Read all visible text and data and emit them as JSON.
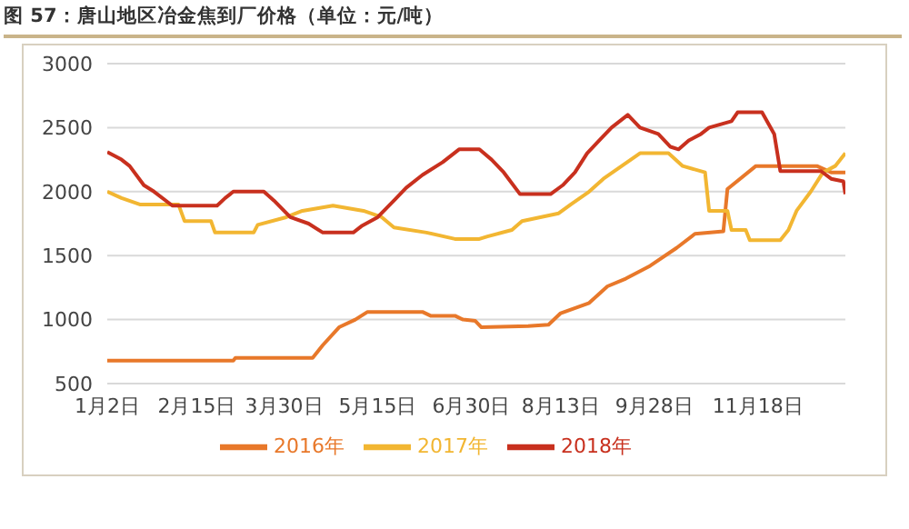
{
  "chart_data": {
    "type": "line",
    "title": "图 57：唐山地区冶金焦到厂价格（单位：元/吨）",
    "xlim": [
      "--01-02",
      "--12-31"
    ],
    "xticks": [
      {
        "value": "--01-02",
        "label": "1月2日"
      },
      {
        "value": "--02-15",
        "label": "2月15日"
      },
      {
        "value": "--03-30",
        "label": "3月30日"
      },
      {
        "value": "--05-15",
        "label": "5月15日"
      },
      {
        "value": "--06-30",
        "label": "6月30日"
      },
      {
        "value": "--08-13",
        "label": "8月13日"
      },
      {
        "value": "--09-28",
        "label": "9月28日"
      },
      {
        "value": "--11-18",
        "label": "11月18日"
      }
    ],
    "ylim": [
      500,
      3000
    ],
    "yticks": [
      500,
      1000,
      1500,
      2000,
      2500,
      3000
    ],
    "grid": "y",
    "legend": "bottom",
    "marker": "none",
    "line_style": "solid",
    "series": [
      {
        "name": "2016年",
        "color": "#e8782a",
        "x": [
          "--01-02",
          "--03-05",
          "--03-06",
          "--04-13",
          "--04-18",
          "--04-26",
          "--05-04",
          "--05-10",
          "--06-06",
          "--06-10",
          "--06-22",
          "--06-26",
          "--07-02",
          "--07-05",
          "--07-28",
          "--08-07",
          "--08-13",
          "--08-27",
          "--09-05",
          "--09-14",
          "--09-26",
          "--10-09",
          "--10-18",
          "--11-01",
          "--11-03",
          "--11-17",
          "--12-17",
          "--12-24",
          "--12-31"
        ],
        "values": [
          680,
          680,
          700,
          700,
          800,
          940,
          1000,
          1060,
          1060,
          1030,
          1030,
          1000,
          990,
          940,
          950,
          960,
          1050,
          1130,
          1260,
          1320,
          1420,
          1560,
          1670,
          1690,
          2020,
          2200,
          2200,
          2150,
          2150
        ]
      },
      {
        "name": "2017年",
        "color": "#f2b632",
        "x": [
          "--01-02",
          "--01-09",
          "--01-18",
          "--02-06",
          "--02-09",
          "--02-22",
          "--02-24",
          "--03-15",
          "--03-17",
          "--03-31",
          "--04-08",
          "--04-23",
          "--05-08",
          "--05-17",
          "--05-23",
          "--06-08",
          "--06-22",
          "--07-04",
          "--07-08",
          "--07-20",
          "--07-25",
          "--08-12",
          "--08-18",
          "--08-27",
          "--09-03",
          "--09-12",
          "--09-21",
          "--10-05",
          "--10-12",
          "--10-23",
          "--10-25",
          "--11-03",
          "--11-05",
          "--11-12",
          "--11-14",
          "--11-29",
          "--12-03",
          "--12-07",
          "--12-14",
          "--12-20",
          "--12-26",
          "--12-31"
        ],
        "values": [
          2000,
          1950,
          1900,
          1900,
          1770,
          1770,
          1680,
          1680,
          1740,
          1800,
          1850,
          1890,
          1850,
          1800,
          1720,
          1680,
          1630,
          1630,
          1650,
          1700,
          1770,
          1830,
          1900,
          2000,
          2100,
          2200,
          2300,
          2300,
          2200,
          2150,
          1850,
          1850,
          1700,
          1700,
          1620,
          1620,
          1700,
          1850,
          2000,
          2150,
          2200,
          2300
        ]
      },
      {
        "name": "2018年",
        "color": "#c8301e",
        "x": [
          "--01-02",
          "--01-09",
          "--01-13",
          "--01-20",
          "--01-25",
          "--02-03",
          "--02-25",
          "--03-01",
          "--03-05",
          "--03-20",
          "--03-25",
          "--04-02",
          "--04-11",
          "--04-18",
          "--05-03",
          "--05-07",
          "--05-15",
          "--05-23",
          "--05-29",
          "--06-06",
          "--06-16",
          "--06-24",
          "--07-04",
          "--07-10",
          "--07-16",
          "--07-24",
          "--08-08",
          "--08-14",
          "--08-20",
          "--08-26",
          "--09-01",
          "--09-07",
          "--09-15",
          "--09-21",
          "--09-30",
          "--10-06",
          "--10-10",
          "--10-15",
          "--10-21",
          "--10-25",
          "--11-05",
          "--11-08",
          "--11-20",
          "--11-26",
          "--11-29",
          "--12-19",
          "--12-24",
          "--12-30",
          "--12-31"
        ],
        "values": [
          2310,
          2250,
          2200,
          2050,
          2000,
          1890,
          1890,
          1950,
          2000,
          2000,
          1930,
          1800,
          1750,
          1680,
          1680,
          1730,
          1800,
          1930,
          2030,
          2130,
          2230,
          2330,
          2330,
          2250,
          2150,
          1980,
          1980,
          2050,
          2150,
          2300,
          2400,
          2500,
          2600,
          2500,
          2450,
          2350,
          2330,
          2400,
          2450,
          2500,
          2550,
          2620,
          2620,
          2450,
          2160,
          2160,
          2100,
          2080,
          1980
        ]
      }
    ]
  }
}
